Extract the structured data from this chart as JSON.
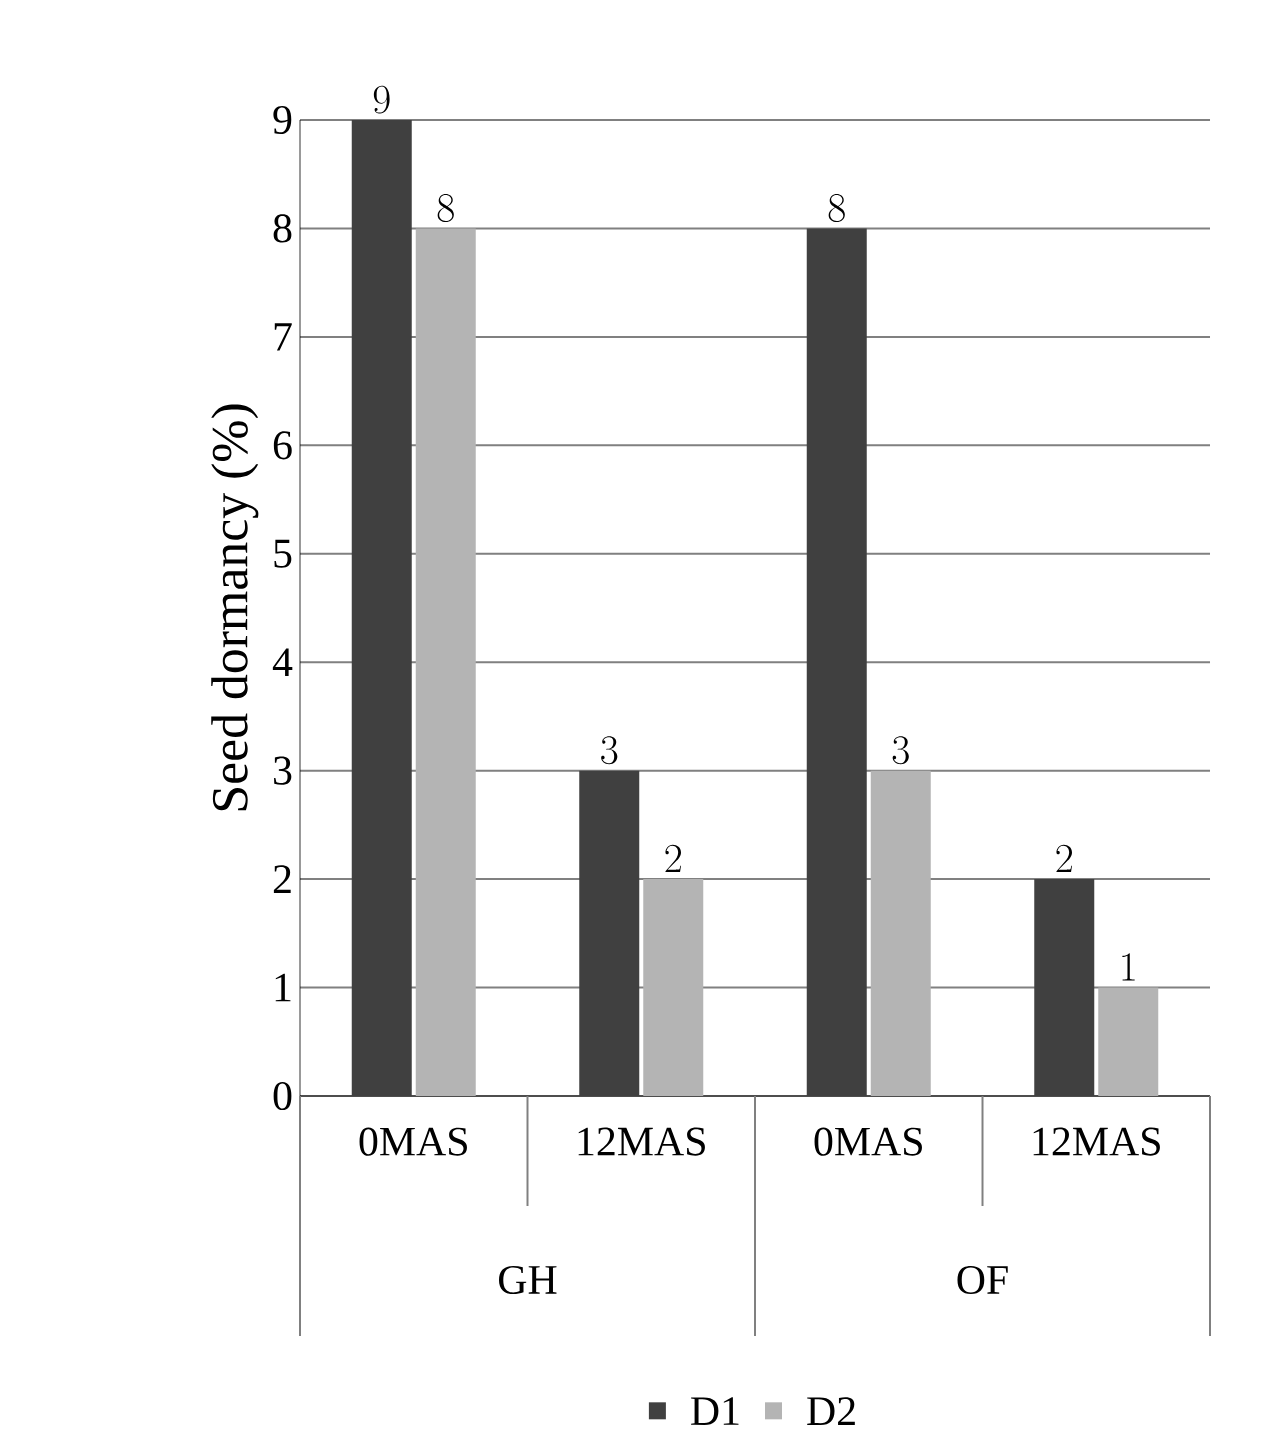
{
  "chart_data": {
    "type": "bar",
    "ylabel": "Seed dormancy (%)",
    "categories": [
      "0MAS",
      "12MAS",
      "0MAS",
      "12MAS"
    ],
    "series": [
      {
        "name": "D1",
        "color": "#404040",
        "values": [
          9,
          3,
          8,
          2
        ]
      },
      {
        "name": "D2",
        "color": "#b4b4b4",
        "values": [
          8,
          2,
          3,
          1
        ]
      }
    ],
    "annotations": [
      "GH",
      "OF"
    ],
    "ylim": [
      0,
      9
    ],
    "yticks": [
      0,
      1,
      2,
      3,
      4,
      5,
      6,
      7,
      8,
      9
    ],
    "grid": "y",
    "legend": "bottom",
    "data_labels": true
  }
}
